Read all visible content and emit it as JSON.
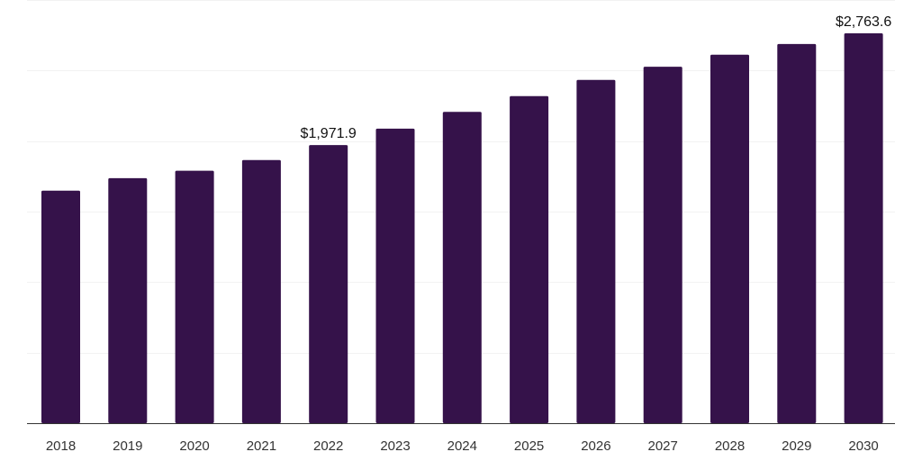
{
  "colors": {
    "bar": "#35124a",
    "axis": "#333333",
    "grid": "#f2f2f2",
    "text": "#333333"
  },
  "chart_data": {
    "type": "bar",
    "title": "",
    "xlabel": "",
    "ylabel": "",
    "categories": [
      "2018",
      "2019",
      "2020",
      "2021",
      "2022",
      "2023",
      "2024",
      "2025",
      "2026",
      "2027",
      "2028",
      "2029",
      "2030"
    ],
    "values": [
      1648,
      1737,
      1790,
      1865,
      1971.9,
      2088,
      2207,
      2319,
      2434,
      2527,
      2612,
      2688,
      2763.6
    ],
    "data_labels": [
      {
        "index": 4,
        "text": "$1,971.9"
      },
      {
        "index": 12,
        "text": "$2,763.6"
      }
    ],
    "ylim": [
      0,
      3000
    ],
    "grid": true,
    "legend": "none"
  }
}
